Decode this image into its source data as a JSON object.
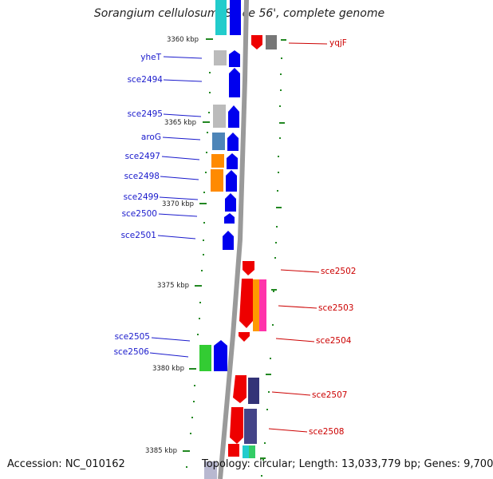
{
  "title": "Sorangium cellulosum 'So ce 56', complete genome",
  "footer": {
    "accession": "Accession: NC_010162",
    "summary": "Topology: circular; Length: 13,033,779 bp; Genes: 9,700"
  },
  "colors": {
    "backbone": "#9a9a9a",
    "forward_gene": "#0000ee",
    "reverse_gene": "#ee0000",
    "left_label": "#1a1acc",
    "right_label": "#cc0000",
    "tick": "#228822"
  },
  "ticks": [
    "3360 kbp",
    "3365 kbp",
    "3370 kbp",
    "3375 kbp",
    "3380 kbp",
    "3385 kbp"
  ],
  "left_labels": [
    "yheT",
    "sce2494",
    "sce2495",
    "aroG",
    "sce2497",
    "sce2498",
    "sce2499",
    "sce2500",
    "sce2501",
    "sce2505",
    "sce2506"
  ],
  "right_labels": [
    "yqjF",
    "sce2502",
    "sce2503",
    "sce2504",
    "sce2507",
    "sce2508"
  ]
}
